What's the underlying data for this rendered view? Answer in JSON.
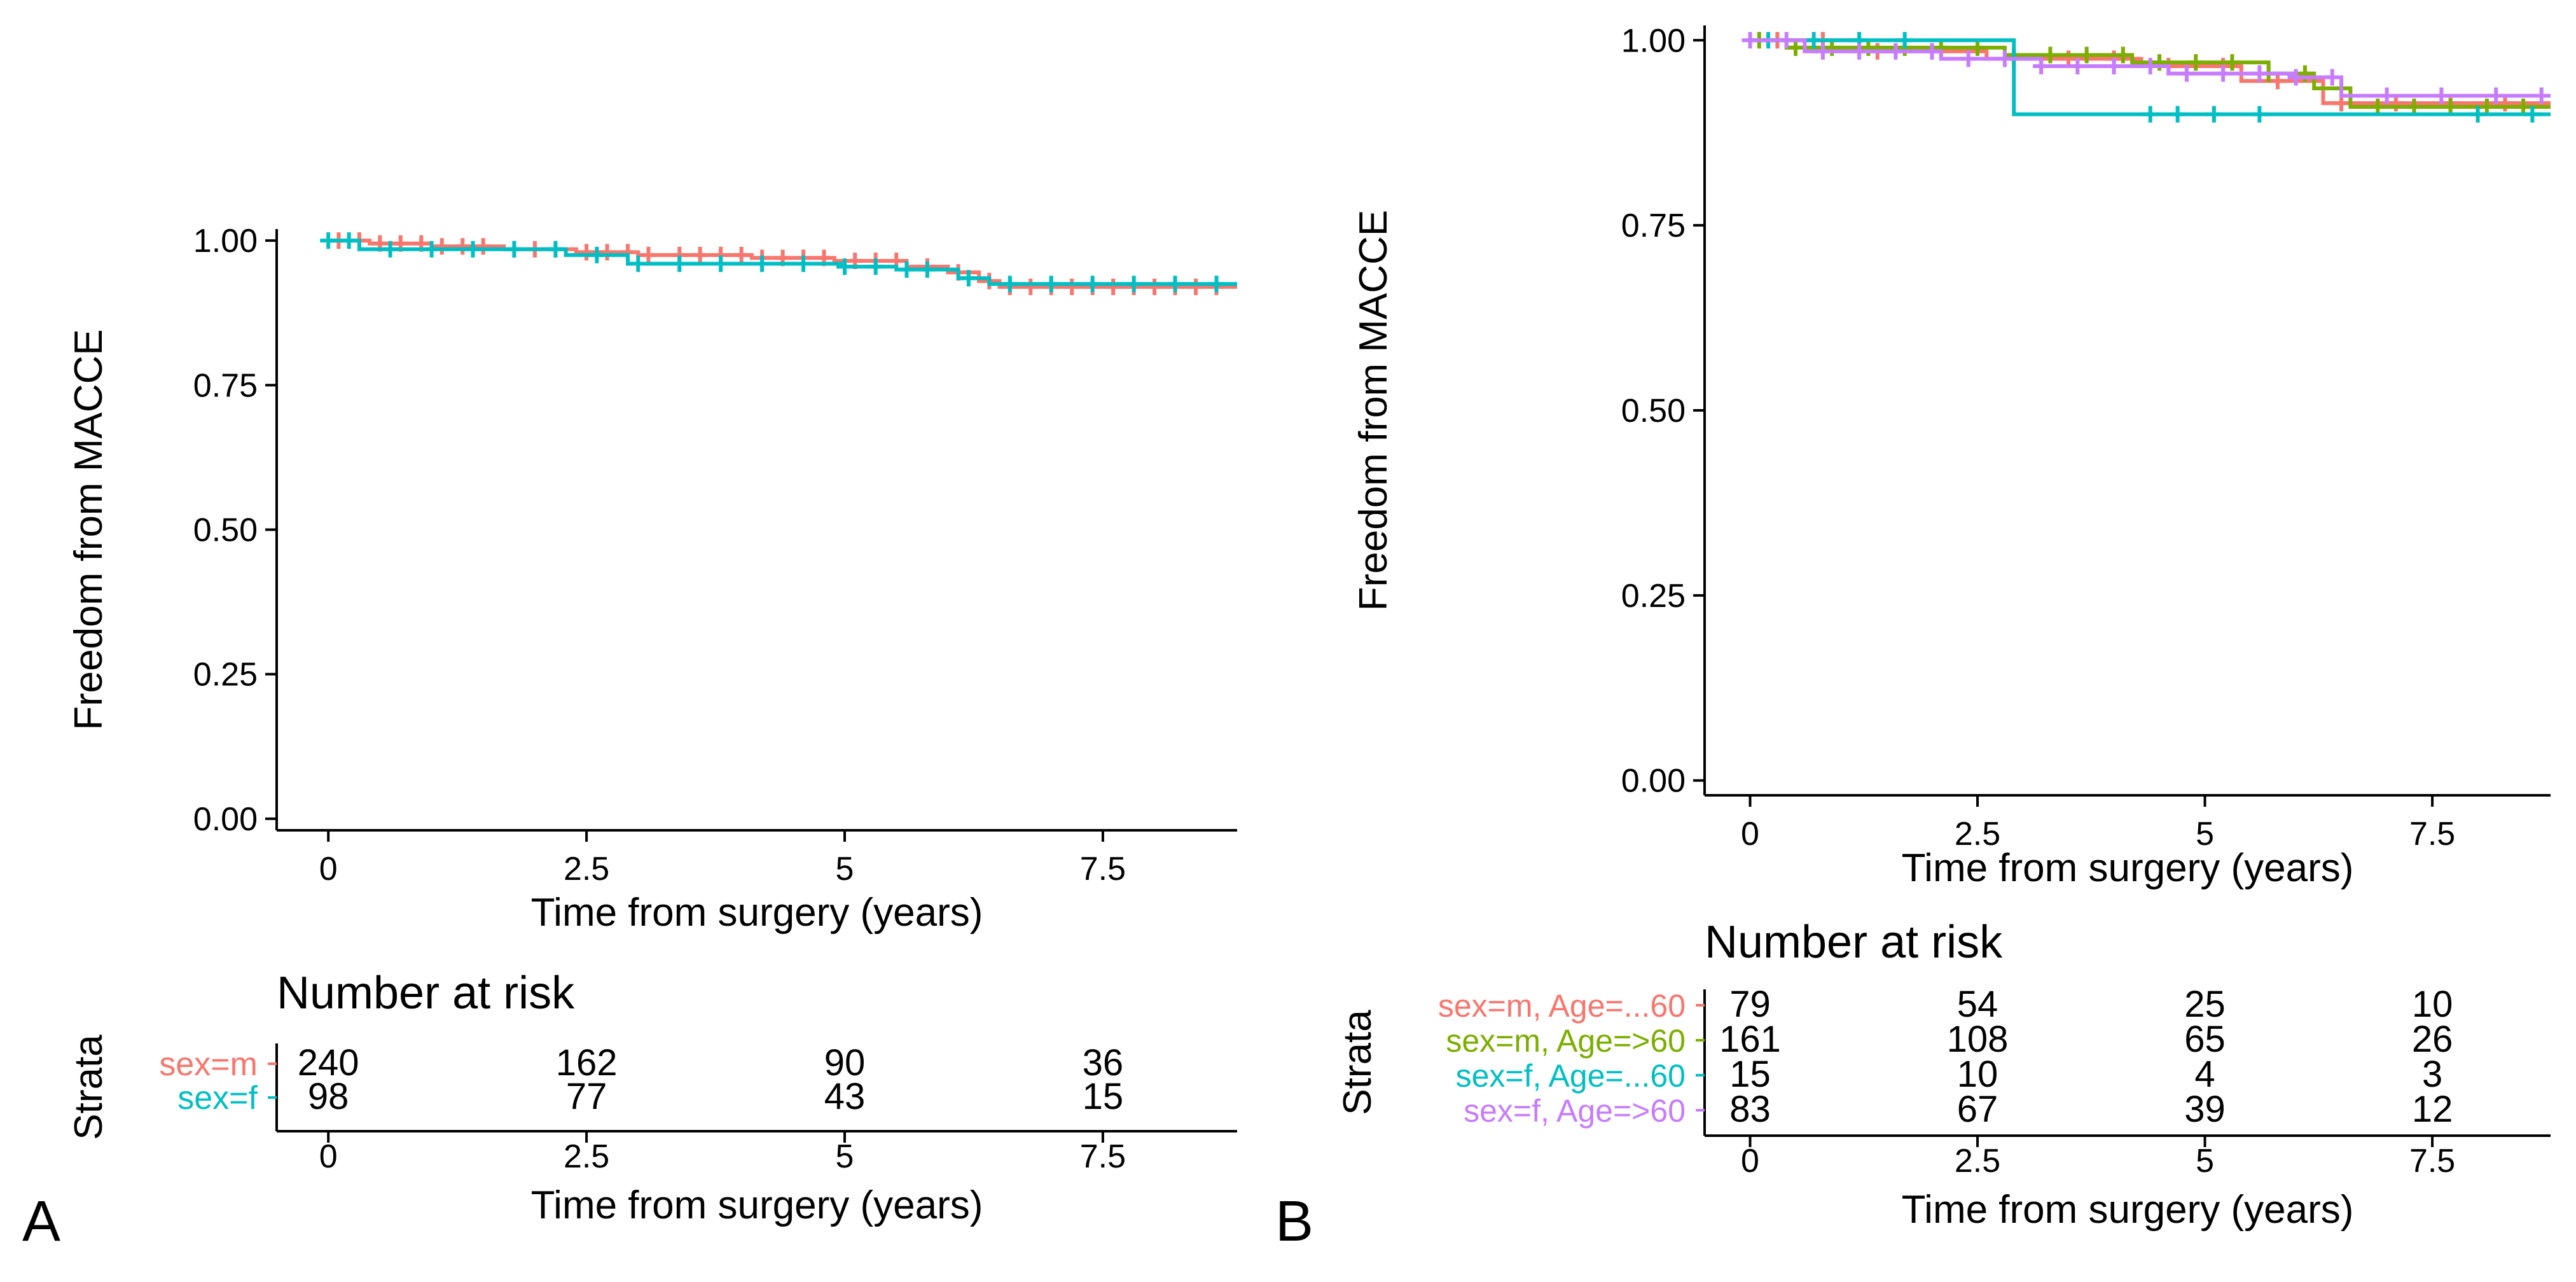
{
  "colors": {
    "axis": "#000000",
    "series": [
      "#F8766D",
      "#7CAE00",
      "#00BFC4",
      "#C77CFF"
    ],
    "two_group": [
      "#F8766D",
      "#00BFC4"
    ]
  },
  "chart_data": [
    {
      "panel": "A",
      "type": "line",
      "kind": "kaplan-meier",
      "xlabel": "Time from surgery (years)",
      "ylabel": "Freedom from MACCE",
      "xlim": [
        -0.5,
        8.8
      ],
      "ylim": [
        -0.02,
        1.02
      ],
      "xticks": [
        0,
        2.5,
        5,
        7.5
      ],
      "xtick_labels": [
        "0",
        "2.5",
        "5",
        "7.5"
      ],
      "yticks": [
        0,
        0.25,
        0.5,
        0.75,
        1.0
      ],
      "ytick_labels": [
        "0.00",
        "0.25",
        "0.50",
        "0.75",
        "1.00"
      ],
      "grid": false,
      "series": [
        {
          "name": "sex=m",
          "x": [
            0,
            0.4,
            1.0,
            1.7,
            2.4,
            3.0,
            4.1,
            4.9,
            5.6,
            6.0,
            6.3,
            6.5,
            8.8
          ],
          "y": [
            1.0,
            0.995,
            0.99,
            0.985,
            0.98,
            0.975,
            0.97,
            0.965,
            0.955,
            0.945,
            0.93,
            0.92,
            0.92
          ],
          "censor_x": [
            0.1,
            0.3,
            0.5,
            0.7,
            0.9,
            1.1,
            1.3,
            1.5,
            1.8,
            2.0,
            2.2,
            2.5,
            2.7,
            2.9,
            3.1,
            3.4,
            3.6,
            3.8,
            4.0,
            4.2,
            4.4,
            4.6,
            4.8,
            5.1,
            5.3,
            5.5,
            5.8,
            6.1,
            6.4,
            6.6,
            6.8,
            7.0,
            7.2,
            7.4,
            7.6,
            7.8,
            8.0,
            8.2,
            8.4,
            8.6
          ]
        },
        {
          "name": "sex=f",
          "x": [
            0,
            0.3,
            2.3,
            2.9,
            5.0,
            5.5,
            6.1,
            6.4,
            8.8
          ],
          "y": [
            1.0,
            0.985,
            0.975,
            0.96,
            0.955,
            0.95,
            0.935,
            0.925,
            0.925
          ],
          "censor_x": [
            0.0,
            0.2,
            0.6,
            1.0,
            1.4,
            1.8,
            2.2,
            2.6,
            3.0,
            3.4,
            3.8,
            4.2,
            4.6,
            5.0,
            5.3,
            5.6,
            5.8,
            6.2,
            6.6,
            7.0,
            7.4,
            7.8,
            8.2,
            8.6
          ]
        }
      ],
      "risk_table": {
        "title": "Number at risk",
        "ylabel": "Strata",
        "xlabel": "Time from surgery (years)",
        "times": [
          0,
          2.5,
          5,
          7.5
        ],
        "rows": [
          {
            "label": "sex=m",
            "counts": [
              "240",
              "162",
              "90",
              "36"
            ]
          },
          {
            "label": "sex=f",
            "counts": [
              "98",
              "77",
              "43",
              "15"
            ]
          }
        ]
      }
    },
    {
      "panel": "B",
      "type": "line",
      "kind": "kaplan-meier",
      "xlabel": "Time from surgery (years)",
      "ylabel": "Freedom from MACCE",
      "xlim": [
        -0.5,
        8.8
      ],
      "ylim": [
        -0.02,
        1.02
      ],
      "xticks": [
        0,
        2.5,
        5,
        7.5
      ],
      "xtick_labels": [
        "0",
        "2.5",
        "5",
        "7.5"
      ],
      "yticks": [
        0,
        0.25,
        0.5,
        0.75,
        1.0
      ],
      "ytick_labels": [
        "0.00",
        "0.25",
        "0.50",
        "0.75",
        "1.00"
      ],
      "grid": false,
      "series": [
        {
          "name": "sex=m, Age=...60",
          "x": [
            0,
            1.2,
            2.6,
            4.3,
            5.4,
            6.3,
            8.8
          ],
          "y": [
            1.0,
            0.985,
            0.975,
            0.965,
            0.945,
            0.915,
            0.915
          ],
          "censor_x": [
            0.3,
            0.8,
            1.4,
            2.0,
            2.9,
            3.5,
            4.0,
            4.6,
            5.2,
            5.8,
            6.5,
            7.1,
            7.7,
            8.3
          ]
        },
        {
          "name": "sex=m, Age=>60",
          "x": [
            0,
            0.4,
            2.8,
            4.2,
            5.7,
            6.2,
            6.6,
            8.8
          ],
          "y": [
            1.0,
            0.99,
            0.98,
            0.97,
            0.955,
            0.935,
            0.91,
            0.91
          ],
          "censor_x": [
            0.1,
            0.5,
            0.9,
            1.3,
            1.7,
            2.1,
            2.5,
            2.9,
            3.3,
            3.7,
            4.1,
            4.5,
            4.9,
            5.3,
            5.7,
            6.1,
            6.5,
            6.9,
            7.3,
            7.7,
            8.1,
            8.5
          ]
        },
        {
          "name": "sex=f, Age=...60",
          "x": [
            0,
            2.9,
            8.8
          ],
          "y": [
            1.0,
            0.9,
            0.9
          ],
          "censor_x": [
            0.2,
            0.7,
            1.2,
            1.7,
            4.4,
            4.7,
            5.1,
            5.6,
            8.0,
            8.6
          ]
        },
        {
          "name": "sex=f, Age=>60",
          "x": [
            0,
            0.6,
            2.1,
            3.2,
            4.6,
            6.0,
            6.5,
            8.8
          ],
          "y": [
            1.0,
            0.985,
            0.975,
            0.965,
            0.955,
            0.95,
            0.925,
            0.925
          ],
          "censor_x": [
            0.0,
            0.4,
            0.8,
            1.2,
            1.6,
            2.0,
            2.4,
            2.8,
            3.2,
            3.6,
            4.0,
            4.4,
            4.8,
            5.2,
            5.6,
            6.0,
            6.4,
            7.0,
            7.6,
            8.2,
            8.7
          ]
        }
      ],
      "risk_table": {
        "title": "Number at risk",
        "ylabel": "Strata",
        "xlabel": "Time from surgery (years)",
        "times": [
          0,
          2.5,
          5,
          7.5
        ],
        "rows": [
          {
            "label": "sex=m, Age=...60",
            "counts": [
              "79",
              "54",
              "25",
              "10"
            ]
          },
          {
            "label": "sex=m, Age=>60",
            "counts": [
              "161",
              "108",
              "65",
              "26"
            ]
          },
          {
            "label": "sex=f, Age=...60",
            "counts": [
              "15",
              "10",
              "4",
              "3"
            ]
          },
          {
            "label": "sex=f, Age=>60",
            "counts": [
              "83",
              "67",
              "39",
              "12"
            ]
          }
        ]
      }
    }
  ]
}
